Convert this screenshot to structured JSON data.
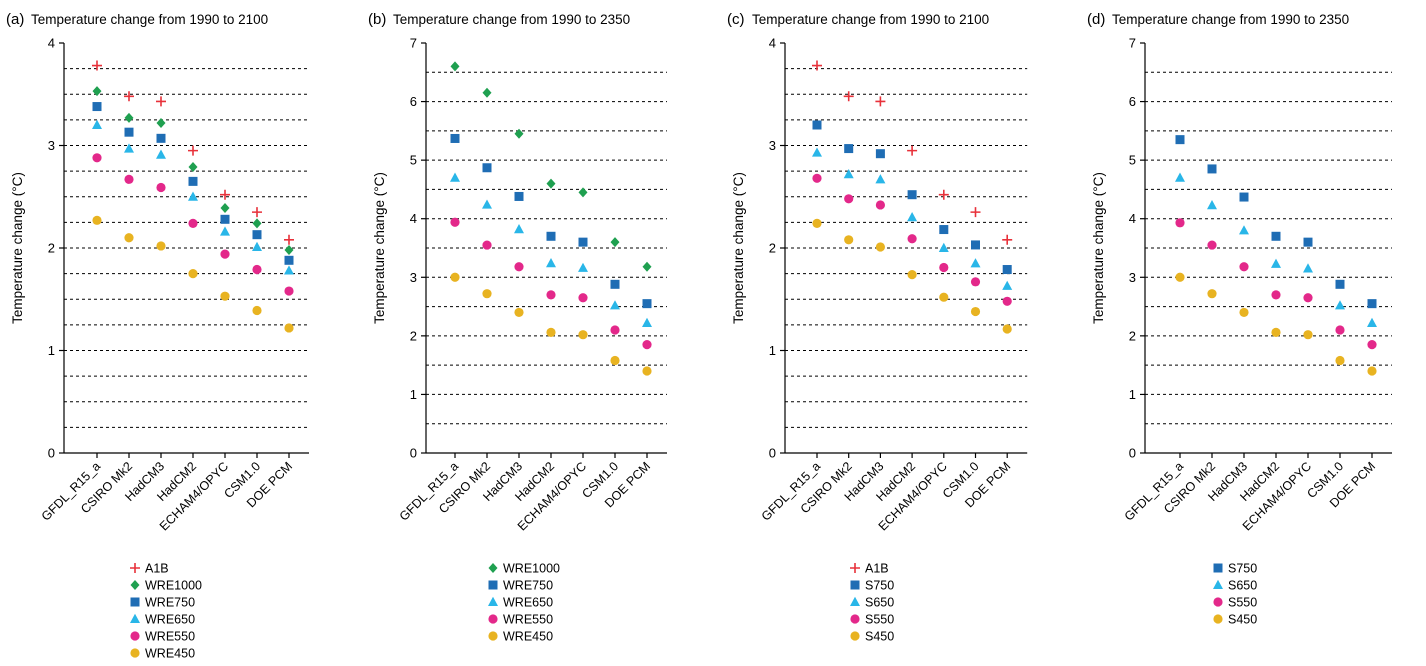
{
  "chart_data": [
    {
      "panel": "(a)",
      "type": "scatter",
      "title": "Temperature change from 1990 to 2100",
      "xlabel": "",
      "ylabel": "Temperature change (°C)",
      "ylim": [
        0,
        4
      ],
      "y_ticks": [
        0,
        1,
        2,
        3,
        4
      ],
      "gridlines": [
        0.25,
        0.5,
        0.75,
        1,
        1.25,
        1.5,
        1.75,
        2,
        2.25,
        2.5,
        2.75,
        3,
        3.25,
        3.5,
        3.75
      ],
      "categories": [
        "GFDL_R15_a",
        "CSIRO Mk2",
        "HadCM3",
        "HadCM2",
        "ECHAM4/OPYC",
        "CSM1.0",
        "DOE PCM"
      ],
      "legend_position": "bottom",
      "series": [
        {
          "name": "A1B",
          "marker": "plus",
          "color": "#e8313a",
          "values": [
            3.78,
            3.48,
            3.43,
            2.95,
            2.52,
            2.35,
            2.08
          ]
        },
        {
          "name": "WRE1000",
          "marker": "diamond",
          "color": "#1fa050",
          "values": [
            3.53,
            3.27,
            3.22,
            2.79,
            2.39,
            2.24,
            1.98
          ]
        },
        {
          "name": "WRE750",
          "marker": "square",
          "color": "#1f6db4",
          "values": [
            3.38,
            3.13,
            3.07,
            2.65,
            2.28,
            2.13,
            1.88
          ]
        },
        {
          "name": "WRE650",
          "marker": "triangle",
          "color": "#29b6e8",
          "values": [
            3.2,
            2.97,
            2.91,
            2.5,
            2.16,
            2.01,
            1.78
          ]
        },
        {
          "name": "WRE550",
          "marker": "circle",
          "color": "#e3288a",
          "values": [
            2.88,
            2.67,
            2.59,
            2.24,
            1.94,
            1.79,
            1.58
          ]
        },
        {
          "name": "WRE450",
          "marker": "circle",
          "color": "#e8b321",
          "values": [
            2.27,
            2.1,
            2.02,
            1.75,
            1.53,
            1.39,
            1.22
          ]
        }
      ]
    },
    {
      "panel": "(b)",
      "type": "scatter",
      "title": "Temperature change from 1990 to 2350",
      "xlabel": "",
      "ylabel": "Temperature change (°C)",
      "ylim": [
        0,
        7
      ],
      "y_ticks": [
        0,
        1,
        2,
        3,
        4,
        5,
        6,
        7
      ],
      "gridlines": [
        0.5,
        1,
        1.5,
        2,
        2.5,
        3,
        3.5,
        4,
        4.5,
        5,
        5.5,
        6,
        6.5
      ],
      "categories": [
        "GFDL_R15_a",
        "CSIRO Mk2",
        "HadCM3",
        "HadCM2",
        "ECHAM4/OPYC",
        "CSM1.0",
        "DOE PCM"
      ],
      "legend_position": "bottom",
      "series": [
        {
          "name": "WRE1000",
          "marker": "diamond",
          "color": "#1fa050",
          "values": [
            6.6,
            6.15,
            5.45,
            4.6,
            4.45,
            3.6,
            3.18
          ]
        },
        {
          "name": "WRE750",
          "marker": "square",
          "color": "#1f6db4",
          "values": [
            5.37,
            4.87,
            4.38,
            3.7,
            3.6,
            2.88,
            2.55
          ]
        },
        {
          "name": "WRE650",
          "marker": "triangle",
          "color": "#29b6e8",
          "values": [
            4.7,
            4.24,
            3.82,
            3.24,
            3.16,
            2.52,
            2.22
          ]
        },
        {
          "name": "WRE550",
          "marker": "circle",
          "color": "#e3288a",
          "values": [
            3.94,
            3.55,
            3.18,
            2.7,
            2.65,
            2.1,
            1.85
          ]
        },
        {
          "name": "WRE450",
          "marker": "circle",
          "color": "#e8b321",
          "values": [
            3.0,
            2.72,
            2.4,
            2.06,
            2.02,
            1.58,
            1.4
          ]
        }
      ]
    },
    {
      "panel": "(c)",
      "type": "scatter",
      "title": "Temperature change from 1990 to 2100",
      "xlabel": "",
      "ylabel": "Temperature change (°C)",
      "ylim": [
        0,
        4
      ],
      "y_ticks": [
        0,
        1,
        2,
        3,
        4
      ],
      "gridlines": [
        0.25,
        0.5,
        0.75,
        1,
        1.25,
        1.5,
        1.75,
        2,
        2.25,
        2.5,
        2.75,
        3,
        3.25,
        3.5,
        3.75
      ],
      "categories": [
        "GFDL_R15_a",
        "CSIRO Mk2",
        "HadCM3",
        "HadCM2",
        "ECHAM4/OPYC",
        "CSM1.0",
        "DOE PCM"
      ],
      "legend_position": "bottom",
      "series": [
        {
          "name": "A1B",
          "marker": "plus",
          "color": "#e8313a",
          "values": [
            3.78,
            3.48,
            3.43,
            2.95,
            2.52,
            2.35,
            2.08
          ]
        },
        {
          "name": "S750",
          "marker": "square",
          "color": "#1f6db4",
          "values": [
            3.2,
            2.97,
            2.92,
            2.52,
            2.18,
            2.03,
            1.79
          ]
        },
        {
          "name": "S650",
          "marker": "triangle",
          "color": "#29b6e8",
          "values": [
            2.93,
            2.72,
            2.67,
            2.3,
            2.0,
            1.85,
            1.63
          ]
        },
        {
          "name": "S550",
          "marker": "circle",
          "color": "#e3288a",
          "values": [
            2.68,
            2.48,
            2.42,
            2.09,
            1.81,
            1.67,
            1.48
          ]
        },
        {
          "name": "S450",
          "marker": "circle",
          "color": "#e8b321",
          "values": [
            2.24,
            2.08,
            2.01,
            1.74,
            1.52,
            1.38,
            1.21
          ]
        }
      ]
    },
    {
      "panel": "(d)",
      "type": "scatter",
      "title": "Temperature change from 1990 to 2350",
      "xlabel": "",
      "ylabel": "Temperature change (°C)",
      "ylim": [
        0,
        7
      ],
      "y_ticks": [
        0,
        1,
        2,
        3,
        4,
        5,
        6,
        7
      ],
      "gridlines": [
        0.5,
        1,
        1.5,
        2,
        2.5,
        3,
        3.5,
        4,
        4.5,
        5,
        5.5,
        6,
        6.5
      ],
      "categories": [
        "GFDL_R15_a",
        "CSIRO Mk2",
        "HadCM3",
        "HadCM2",
        "ECHAM4/OPYC",
        "CSM1.0",
        "DOE PCM"
      ],
      "legend_position": "bottom",
      "series": [
        {
          "name": "S750",
          "marker": "square",
          "color": "#1f6db4",
          "values": [
            5.35,
            4.85,
            4.37,
            3.7,
            3.6,
            2.88,
            2.55
          ]
        },
        {
          "name": "S650",
          "marker": "triangle",
          "color": "#29b6e8",
          "values": [
            4.7,
            4.23,
            3.8,
            3.23,
            3.15,
            2.52,
            2.22
          ]
        },
        {
          "name": "S550",
          "marker": "circle",
          "color": "#e3288a",
          "values": [
            3.93,
            3.55,
            3.18,
            2.7,
            2.65,
            2.1,
            1.85
          ]
        },
        {
          "name": "S450",
          "marker": "circle",
          "color": "#e8b321",
          "values": [
            3.0,
            2.72,
            2.4,
            2.06,
            2.02,
            1.58,
            1.4
          ]
        }
      ]
    }
  ]
}
